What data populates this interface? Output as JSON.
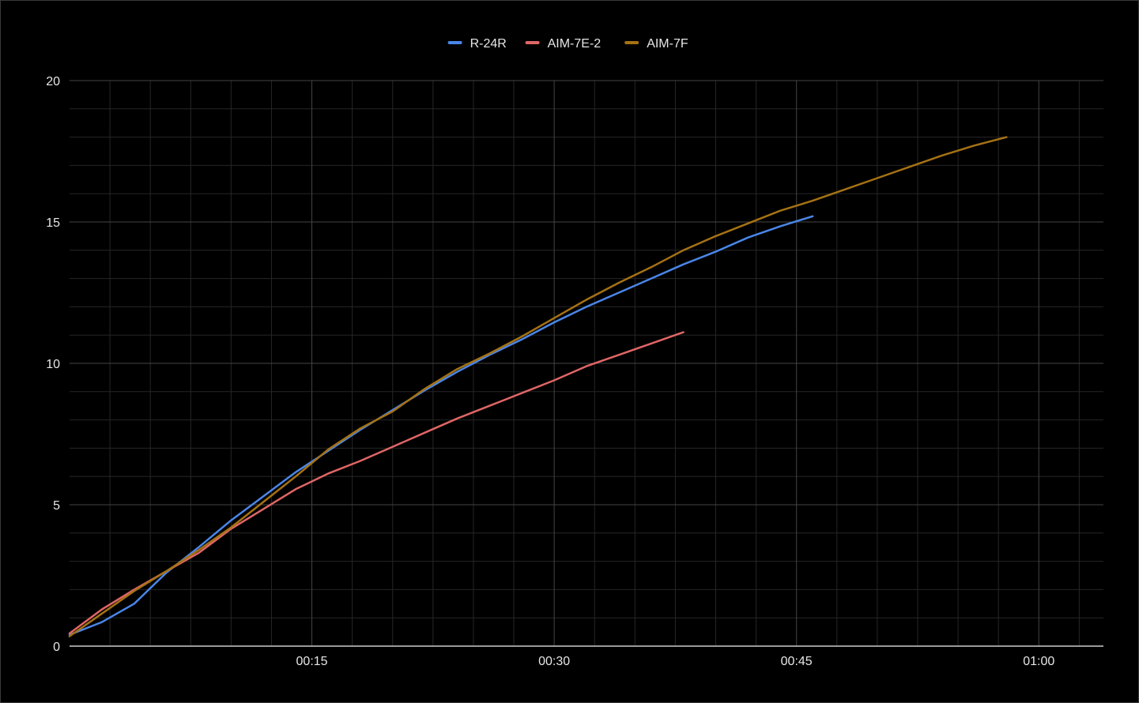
{
  "chart_data": {
    "type": "line",
    "title": "",
    "xlabel": "",
    "ylabel": "",
    "x_unit": "seconds",
    "xlim": [
      0,
      64
    ],
    "ylim": [
      0,
      20
    ],
    "x_ticks": [
      {
        "value": 15,
        "label": "00:15"
      },
      {
        "value": 30,
        "label": "00:30"
      },
      {
        "value": 45,
        "label": "00:45"
      },
      {
        "value": 60,
        "label": "01:00"
      }
    ],
    "y_ticks": [
      {
        "value": 0,
        "label": "0"
      },
      {
        "value": 5,
        "label": "5"
      },
      {
        "value": 10,
        "label": "10"
      },
      {
        "value": 15,
        "label": "15"
      },
      {
        "value": 20,
        "label": "20"
      }
    ],
    "grid": true,
    "legend_position": "top-center",
    "background": "#000000",
    "series": [
      {
        "name": "R-24R",
        "color": "#4a86e8",
        "x": [
          0,
          2,
          4,
          6,
          8,
          10,
          12,
          14,
          16,
          18,
          20,
          22,
          24,
          26,
          28,
          30,
          32,
          34,
          36,
          38,
          40,
          42,
          44,
          46,
          48
        ],
        "y": [
          0.4,
          0.85,
          1.5,
          2.6,
          3.5,
          4.45,
          5.3,
          6.15,
          6.9,
          7.65,
          8.35,
          9.05,
          9.7,
          10.3,
          10.85,
          11.45,
          12.0,
          12.5,
          13.0,
          13.5,
          13.95,
          14.45,
          14.85,
          15.2,
          null
        ]
      },
      {
        "name": "AIM-7E-2",
        "color": "#e06666",
        "x": [
          0,
          2,
          4,
          6,
          8,
          10,
          12,
          14,
          16,
          18,
          20,
          22,
          24,
          26,
          28,
          30,
          32,
          34,
          36,
          38
        ],
        "y": [
          0.45,
          1.3,
          2.0,
          2.65,
          3.3,
          4.15,
          4.85,
          5.55,
          6.1,
          6.55,
          7.05,
          7.55,
          8.05,
          8.5,
          8.95,
          9.4,
          9.9,
          10.3,
          10.7,
          11.1
        ]
      },
      {
        "name": "AIM-7F",
        "color": "#a57213",
        "x": [
          0,
          2,
          4,
          6,
          8,
          10,
          12,
          14,
          16,
          18,
          20,
          22,
          24,
          26,
          28,
          30,
          32,
          34,
          36,
          38,
          40,
          42,
          44,
          46,
          48,
          50,
          52,
          54,
          56,
          58
        ],
        "y": [
          0.35,
          1.15,
          1.95,
          2.65,
          3.4,
          4.2,
          5.1,
          6.0,
          6.95,
          7.7,
          8.3,
          9.1,
          9.8,
          10.35,
          10.95,
          11.6,
          12.25,
          12.85,
          13.4,
          14.0,
          14.5,
          14.95,
          15.4,
          15.75,
          16.15,
          16.55,
          16.95,
          17.35,
          17.7,
          18.0
        ]
      }
    ]
  }
}
